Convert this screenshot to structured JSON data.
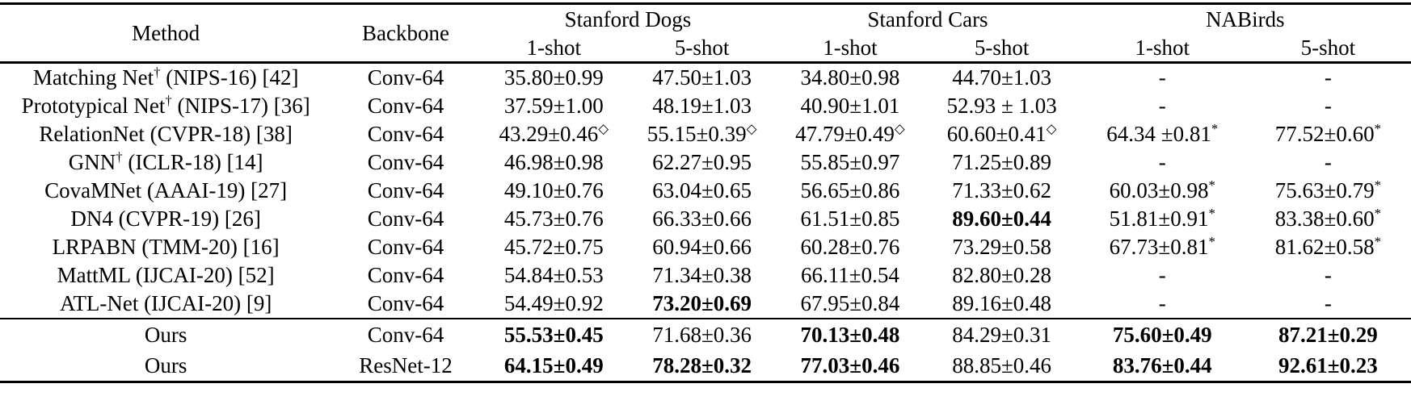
{
  "table": {
    "headers": {
      "method": "Method",
      "backbone": "Backbone",
      "groups": [
        {
          "label": "Stanford Dogs",
          "subs": [
            "1-shot",
            "5-shot"
          ]
        },
        {
          "label": "Stanford Cars",
          "subs": [
            "1-shot",
            "5-shot"
          ]
        },
        {
          "label": "NABirds",
          "subs": [
            "1-shot",
            "5-shot"
          ]
        }
      ]
    },
    "rows": [
      {
        "section": "baseline",
        "method": {
          "pre": "Matching Net",
          "sup": "†",
          "post": " (NIPS-16) [42]"
        },
        "backbone": "Conv-64",
        "cells": [
          {
            "v": "35.80±0.99"
          },
          {
            "v": "47.50±1.03"
          },
          {
            "v": "34.80±0.98"
          },
          {
            "v": "44.70±1.03"
          },
          {
            "v": "-"
          },
          {
            "v": "-"
          }
        ]
      },
      {
        "section": "baseline",
        "method": {
          "pre": "Prototypical Net",
          "sup": "†",
          "post": " (NIPS-17) [36]"
        },
        "backbone": "Conv-64",
        "cells": [
          {
            "v": "37.59±1.00"
          },
          {
            "v": "48.19±1.03"
          },
          {
            "v": "40.90±1.01"
          },
          {
            "v": "52.93 ± 1.03"
          },
          {
            "v": "-"
          },
          {
            "v": "-"
          }
        ]
      },
      {
        "section": "baseline",
        "method": {
          "pre": "RelationNet (CVPR-18) [38]",
          "sup": "",
          "post": ""
        },
        "backbone": "Conv-64",
        "cells": [
          {
            "v": "43.29±0.46",
            "sup": "◇"
          },
          {
            "v": "55.15±0.39",
            "sup": "◇"
          },
          {
            "v": "47.79±0.49",
            "sup": "◇"
          },
          {
            "v": "60.60±0.41",
            "sup": "◇"
          },
          {
            "v": "64.34 ±0.81",
            "sup": "*"
          },
          {
            "v": "77.52±0.60",
            "sup": "*"
          }
        ]
      },
      {
        "section": "baseline",
        "method": {
          "pre": "GNN",
          "sup": "†",
          "post": " (ICLR-18) [14]"
        },
        "backbone": "Conv-64",
        "cells": [
          {
            "v": "46.98±0.98"
          },
          {
            "v": "62.27±0.95"
          },
          {
            "v": "55.85±0.97"
          },
          {
            "v": "71.25±0.89"
          },
          {
            "v": "-"
          },
          {
            "v": "-"
          }
        ]
      },
      {
        "section": "baseline",
        "method": {
          "pre": "CovaMNet (AAAI-19) [27]",
          "sup": "",
          "post": ""
        },
        "backbone": "Conv-64",
        "cells": [
          {
            "v": "49.10±0.76"
          },
          {
            "v": "63.04±0.65"
          },
          {
            "v": "56.65±0.86"
          },
          {
            "v": "71.33±0.62"
          },
          {
            "v": "60.03±0.98",
            "sup": "*"
          },
          {
            "v": "75.63±0.79",
            "sup": "*"
          }
        ]
      },
      {
        "section": "baseline",
        "method": {
          "pre": "DN4 (CVPR-19) [26]",
          "sup": "",
          "post": ""
        },
        "backbone": "Conv-64",
        "cells": [
          {
            "v": "45.73±0.76"
          },
          {
            "v": "66.33±0.66"
          },
          {
            "v": "61.51±0.85"
          },
          {
            "v": "89.60±0.44",
            "bold": true
          },
          {
            "v": "51.81±0.91",
            "sup": "*"
          },
          {
            "v": "83.38±0.60",
            "sup": "*"
          }
        ]
      },
      {
        "section": "baseline",
        "method": {
          "pre": "LRPABN (TMM-20) [16]",
          "sup": "",
          "post": ""
        },
        "backbone": "Conv-64",
        "cells": [
          {
            "v": "45.72±0.75"
          },
          {
            "v": "60.94±0.66"
          },
          {
            "v": "60.28±0.76"
          },
          {
            "v": "73.29±0.58"
          },
          {
            "v": "67.73±0.81",
            "sup": "*"
          },
          {
            "v": "81.62±0.58",
            "sup": "*"
          }
        ]
      },
      {
        "section": "baseline",
        "method": {
          "pre": "MattML (IJCAI-20) [52]",
          "sup": "",
          "post": ""
        },
        "backbone": "Conv-64",
        "cells": [
          {
            "v": "54.84±0.53"
          },
          {
            "v": "71.34±0.38"
          },
          {
            "v": "66.11±0.54"
          },
          {
            "v": "82.80±0.28"
          },
          {
            "v": "-"
          },
          {
            "v": "-"
          }
        ]
      },
      {
        "section": "baseline",
        "method": {
          "pre": "ATL-Net (IJCAI-20) [9]",
          "sup": "",
          "post": ""
        },
        "backbone": "Conv-64",
        "cells": [
          {
            "v": "54.49±0.92"
          },
          {
            "v": "73.20±0.69",
            "bold": true
          },
          {
            "v": "67.95±0.84"
          },
          {
            "v": "89.16±0.48"
          },
          {
            "v": "-"
          },
          {
            "v": "-"
          }
        ]
      },
      {
        "section": "ours",
        "method": {
          "pre": "Ours",
          "sup": "",
          "post": ""
        },
        "backbone": "Conv-64",
        "cells": [
          {
            "v": "55.53±0.45",
            "bold": true
          },
          {
            "v": "71.68±0.36"
          },
          {
            "v": "70.13±0.48",
            "bold": true
          },
          {
            "v": "84.29±0.31"
          },
          {
            "v": "75.60±0.49",
            "bold": true
          },
          {
            "v": "87.21±0.29",
            "bold": true
          }
        ]
      },
      {
        "section": "ours",
        "method": {
          "pre": "Ours",
          "sup": "",
          "post": ""
        },
        "backbone": "ResNet-12",
        "cells": [
          {
            "v": "64.15±0.49",
            "bold": true
          },
          {
            "v": "78.28±0.32",
            "bold": true
          },
          {
            "v": "77.03±0.46",
            "bold": true
          },
          {
            "v": "88.85±0.46"
          },
          {
            "v": "83.76±0.44",
            "bold": true
          },
          {
            "v": "92.61±0.23",
            "bold": true
          }
        ]
      }
    ]
  }
}
